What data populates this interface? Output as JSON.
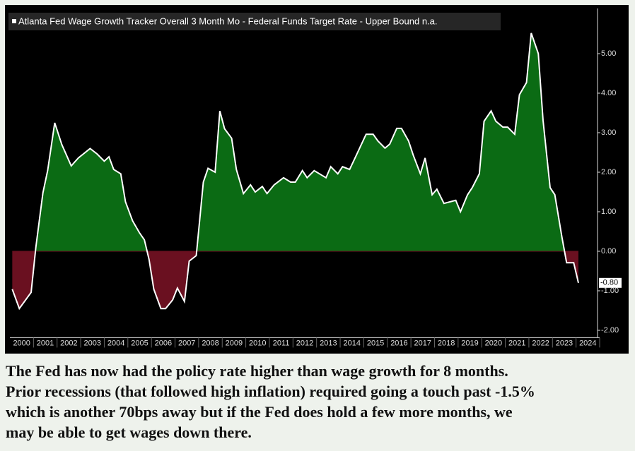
{
  "chart_data": {
    "type": "area",
    "series": [
      {
        "name": "Atlanta Fed Wage Growth Tracker Overall 3 Month Mo - Federal Funds Target Rate - Upper Bound n.a.",
        "color": "#ffffff",
        "pos_color": "#0b6b14",
        "neg_color": "#6a1020",
        "x": [
          2000.1,
          2000.4,
          2000.9,
          2001.1,
          2001.4,
          2001.6,
          2001.9,
          2002.2,
          2002.6,
          2002.9,
          2003.4,
          2003.7,
          2004.0,
          2004.2,
          2004.4,
          2004.7,
          2004.9,
          2005.2,
          2005.5,
          2005.7,
          2005.9,
          2006.1,
          2006.4,
          2006.6,
          2006.9,
          2007.1,
          2007.4,
          2007.6,
          2007.9,
          2008.2,
          2008.4,
          2008.7,
          2008.9,
          2009.1,
          2009.4,
          2009.6,
          2009.9,
          2010.2,
          2010.4,
          2010.7,
          2010.9,
          2011.2,
          2011.6,
          2011.9,
          2012.1,
          2012.4,
          2012.6,
          2012.9,
          2013.4,
          2013.6,
          2013.9,
          2014.1,
          2014.4,
          2014.6,
          2015.1,
          2015.4,
          2015.6,
          2015.9,
          2016.1,
          2016.4,
          2016.6,
          2016.9,
          2017.1,
          2017.4,
          2017.6,
          2017.9,
          2018.1,
          2018.4,
          2018.9,
          2019.1,
          2019.4,
          2019.6,
          2019.9,
          2020.1,
          2020.4,
          2020.6,
          2020.9,
          2021.1,
          2021.4,
          2021.6,
          2021.9,
          2022.1,
          2022.4,
          2022.6,
          2022.9,
          2023.1,
          2023.4,
          2023.6,
          2023.9,
          2024.1
        ],
        "values": [
          -0.96,
          -1.45,
          -1.04,
          0.1,
          1.48,
          2.04,
          3.25,
          2.7,
          2.16,
          2.36,
          2.6,
          2.46,
          2.28,
          2.39,
          2.07,
          1.96,
          1.25,
          0.77,
          0.46,
          0.29,
          -0.21,
          -0.96,
          -1.45,
          -1.45,
          -1.23,
          -0.93,
          -1.27,
          -0.25,
          -0.11,
          1.75,
          2.1,
          2.0,
          3.55,
          3.1,
          2.86,
          2.07,
          1.46,
          1.68,
          1.5,
          1.64,
          1.46,
          1.68,
          1.86,
          1.75,
          1.75,
          2.04,
          1.86,
          2.04,
          1.86,
          2.14,
          1.96,
          2.14,
          2.07,
          2.32,
          2.96,
          2.96,
          2.79,
          2.61,
          2.71,
          3.11,
          3.11,
          2.79,
          2.43,
          1.96,
          2.36,
          1.43,
          1.57,
          1.21,
          1.29,
          1.0,
          1.43,
          1.61,
          1.96,
          3.29,
          3.55,
          3.29,
          3.14,
          3.14,
          2.96,
          3.96,
          4.27,
          5.52,
          5.0,
          3.32,
          1.61,
          1.43,
          0.36,
          -0.29,
          -0.29,
          -0.8
        ]
      }
    ],
    "last_label": {
      "value": -0.8,
      "label": "-0.80"
    },
    "xlim": [
      2000,
      2025
    ],
    "xticks": [
      {
        "value": 2000.5,
        "label": "2000"
      },
      {
        "value": 2001.5,
        "label": "2001"
      },
      {
        "value": 2002.5,
        "label": "2002"
      },
      {
        "value": 2003.5,
        "label": "2003"
      },
      {
        "value": 2004.5,
        "label": "2004"
      },
      {
        "value": 2005.5,
        "label": "2005"
      },
      {
        "value": 2006.5,
        "label": "2006"
      },
      {
        "value": 2007.5,
        "label": "2007"
      },
      {
        "value": 2008.5,
        "label": "2008"
      },
      {
        "value": 2009.5,
        "label": "2009"
      },
      {
        "value": 2010.5,
        "label": "2010"
      },
      {
        "value": 2011.5,
        "label": "2011"
      },
      {
        "value": 2012.5,
        "label": "2012"
      },
      {
        "value": 2013.5,
        "label": "2013"
      },
      {
        "value": 2014.5,
        "label": "2014"
      },
      {
        "value": 2015.5,
        "label": "2015"
      },
      {
        "value": 2016.5,
        "label": "2016"
      },
      {
        "value": 2017.5,
        "label": "2017"
      },
      {
        "value": 2018.5,
        "label": "2018"
      },
      {
        "value": 2019.5,
        "label": "2019"
      },
      {
        "value": 2020.5,
        "label": "2020"
      },
      {
        "value": 2021.5,
        "label": "2021"
      },
      {
        "value": 2022.5,
        "label": "2022"
      },
      {
        "value": 2023.5,
        "label": "2023"
      },
      {
        "value": 2024.5,
        "label": "2024"
      }
    ],
    "ylim": [
      -2.15,
      6.1
    ],
    "yticks": [
      {
        "value": -2,
        "label": "-2.00"
      },
      {
        "value": -1,
        "label": "-1.00"
      },
      {
        "value": 0,
        "label": "0.00"
      },
      {
        "value": 1,
        "label": "1.00"
      },
      {
        "value": 2,
        "label": "2.00"
      },
      {
        "value": 3,
        "label": "3.00"
      },
      {
        "value": 4,
        "label": "4.00"
      },
      {
        "value": 5,
        "label": "5.00"
      }
    ]
  },
  "caption": [
    "The Fed has now had the policy rate higher than wage growth for 8 months.",
    "Prior recessions (that followed high inflation) required going a touch past -1.5%",
    "which is another 70bps away but if the Fed does hold a few more months, we",
    "may be able to get wages down there."
  ]
}
